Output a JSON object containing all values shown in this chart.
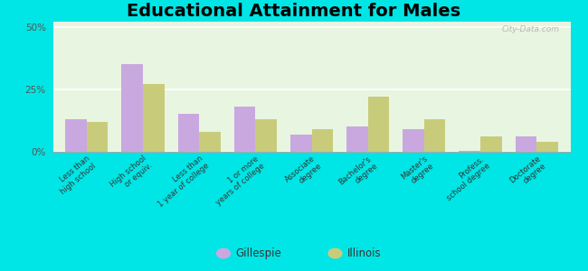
{
  "title": "Educational Attainment for Males",
  "categories": [
    "Less than\nhigh school",
    "High school\nor equiv.",
    "Less than\n1 year of college",
    "1 or more\nyears of college",
    "Associate\ndegree",
    "Bachelor's\ndegree",
    "Master's\ndegree",
    "Profess.\nschool degree",
    "Doctorate\ndegree"
  ],
  "gillespie": [
    13.0,
    35.0,
    15.0,
    18.0,
    7.0,
    10.0,
    9.0,
    0.5,
    6.0
  ],
  "illinois": [
    12.0,
    27.0,
    8.0,
    13.0,
    9.0,
    22.0,
    13.0,
    6.0,
    4.0
  ],
  "gillespie_color": "#c9a8e0",
  "illinois_color": "#c8cc7a",
  "background_top": "#e8f5e0",
  "background_bottom": "#f0f8e8",
  "outer_background": "#00e5e5",
  "title_fontsize": 14,
  "yticks": [
    0,
    25,
    50
  ],
  "ylim": [
    0,
    52
  ],
  "watermark": "City-Data.com"
}
